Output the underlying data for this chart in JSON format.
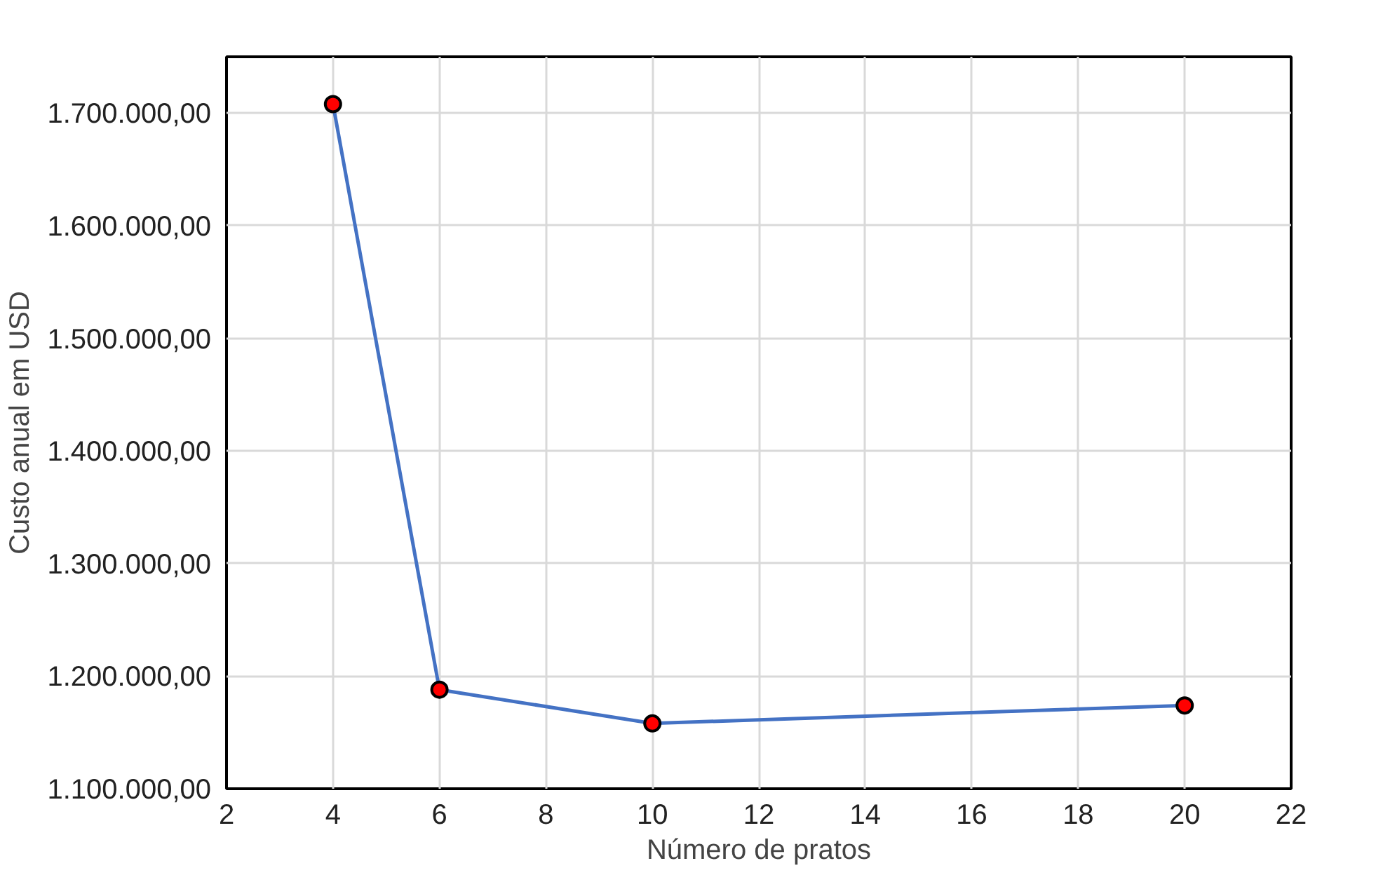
{
  "chart_data": {
    "type": "line",
    "xlabel": "Número de pratos",
    "ylabel": "Custo anual em USD",
    "x": [
      4,
      6,
      10,
      20
    ],
    "series": [
      {
        "color": "#4472c4",
        "values": [
          1708000,
          1188000,
          1158000,
          1174000
        ]
      }
    ],
    "marker": "circle",
    "line_style": "solid",
    "grid": true,
    "xlim": [
      2,
      22
    ],
    "xticks": [
      2,
      4,
      6,
      8,
      10,
      12,
      14,
      16,
      18,
      20,
      22
    ],
    "ylim": [
      1100000,
      1750000
    ],
    "yticks": [
      {
        "value": 1100000,
        "label": "1.100.000,00"
      },
      {
        "value": 1200000,
        "label": "1.200.000,00"
      },
      {
        "value": 1300000,
        "label": "1.300.000,00"
      },
      {
        "value": 1400000,
        "label": "1.400.000,00"
      },
      {
        "value": 1500000,
        "label": "1.500.000,00"
      },
      {
        "value": 1600000,
        "label": "1.600.000,00"
      },
      {
        "value": 1700000,
        "label": "1.700.000,00"
      }
    ]
  }
}
